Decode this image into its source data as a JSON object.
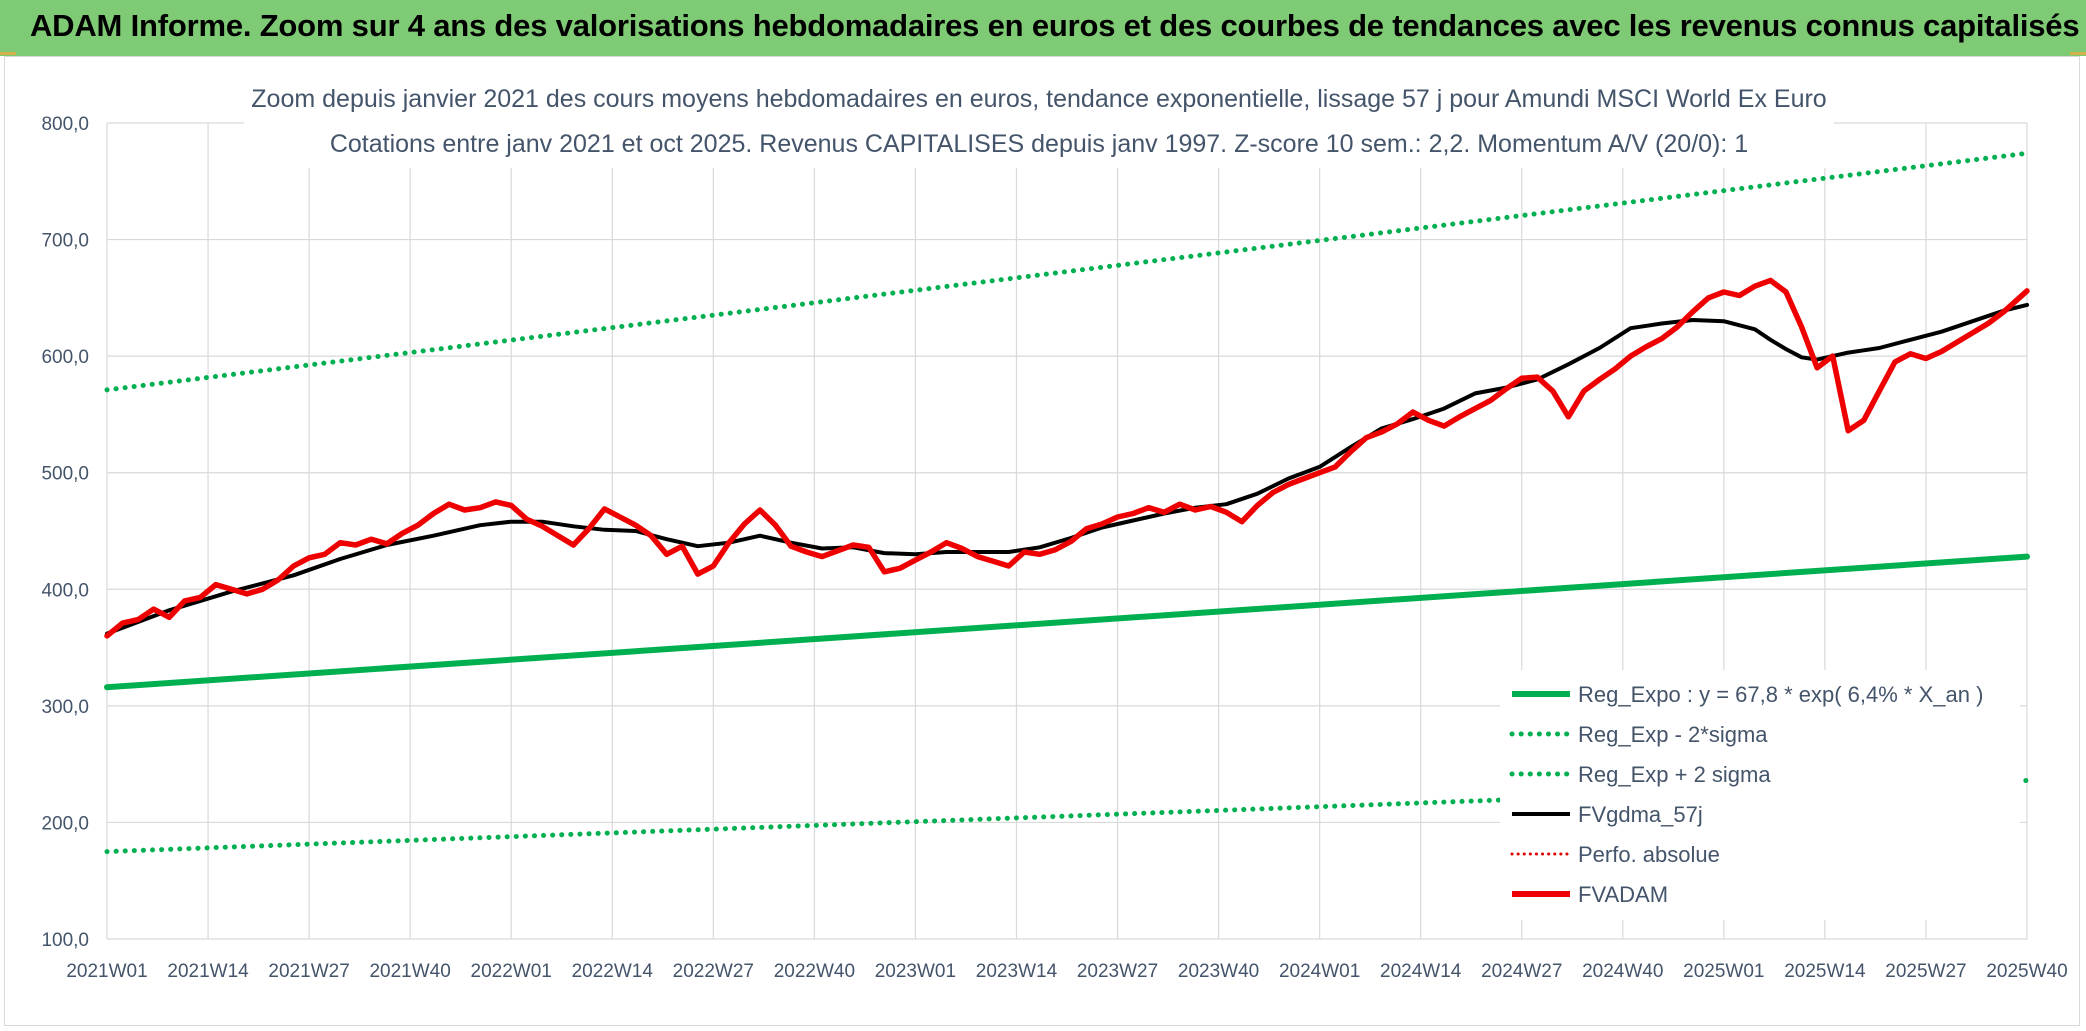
{
  "banner": {
    "title": "ADAM Informe. Zoom sur 4 ans des valorisations hebdomadaires en euros et des courbes de tendances avec les revenus connus capitalisés"
  },
  "colors": {
    "banner_bg": "#7fca74",
    "reg_expo": "#00b050",
    "sigma_lines": "#00b050",
    "fvgdma": "#000000",
    "perfo": "#e00000",
    "fvadam": "#ee0000",
    "grid": "#d9d9d9",
    "text": "#44546a"
  },
  "chart_data": {
    "type": "line",
    "title_line1": "Zoom depuis janvier 2021 des cours moyens hebdomadaires en euros, tendance exponentielle, lissage 57 j pour Amundi MSCI World Ex Euro",
    "title_line2": "Cotations entre janv 2021 et oct 2025. Revenus CAPITALISES depuis janv 1997. Z-score 10 sem.: 2,2. Momentum A/V (20/0): 1",
    "ylim": [
      100,
      800
    ],
    "yticks": [
      100,
      200,
      300,
      400,
      500,
      600,
      700,
      800
    ],
    "ytick_labels": [
      "100,0",
      "200,0",
      "300,0",
      "400,0",
      "500,0",
      "600,0",
      "700,0",
      "800,0"
    ],
    "x_domain": [
      0,
      247
    ],
    "xtick_positions": [
      0,
      13,
      26,
      39,
      52,
      65,
      78,
      91,
      104,
      117,
      130,
      143,
      156,
      169,
      182,
      195,
      208,
      221,
      234,
      247
    ],
    "xtick_labels": [
      "2021W01",
      "2021W14",
      "2021W27",
      "2021W40",
      "2022W01",
      "2022W14",
      "2022W27",
      "2022W40",
      "2023W01",
      "2023W14",
      "2023W27",
      "2023W40",
      "2024W01",
      "2024W14",
      "2024W27",
      "2024W40",
      "2025W01",
      "2025W14",
      "2025W27",
      "2025W40"
    ],
    "grid": true,
    "legend_position": "bottom-right",
    "series": [
      {
        "name": "Reg_Expo : y = 67,8 * exp( 6,4% *  X_an )",
        "style": "solid-thick",
        "x": [
          0,
          247
        ],
        "values": [
          316,
          428
        ]
      },
      {
        "name": "Reg_Exp - 2*sigma",
        "style": "dotted",
        "x": [
          0,
          247
        ],
        "values": [
          175,
          236
        ]
      },
      {
        "name": "Reg_Exp + 2 sigma",
        "style": "dotted",
        "x": [
          0,
          247
        ],
        "values": [
          571,
          774
        ]
      },
      {
        "name": "FVgdma_57j",
        "style": "solid",
        "x": [
          0,
          8,
          16,
          24,
          30,
          36,
          42,
          48,
          52,
          56,
          60,
          64,
          68,
          72,
          76,
          80,
          84,
          88,
          92,
          96,
          100,
          104,
          108,
          112,
          116,
          120,
          124,
          128,
          132,
          136,
          140,
          144,
          148,
          152,
          156,
          160,
          164,
          168,
          172,
          176,
          180,
          184,
          188,
          192,
          196,
          200,
          204,
          208,
          212,
          214,
          216,
          218,
          220,
          222,
          224,
          226,
          228,
          232,
          236,
          240,
          244,
          247
        ],
        "values": [
          362,
          382,
          398,
          412,
          426,
          438,
          446,
          455,
          458,
          458,
          454,
          451,
          450,
          443,
          437,
          440,
          446,
          440,
          435,
          436,
          431,
          430,
          432,
          432,
          432,
          436,
          444,
          453,
          459,
          465,
          470,
          473,
          482,
          495,
          505,
          522,
          538,
          546,
          555,
          568,
          573,
          580,
          593,
          607,
          624,
          628,
          631,
          630,
          623,
          614,
          606,
          599,
          597,
          600,
          603,
          605,
          607,
          614,
          621,
          630,
          639,
          644
        ]
      },
      {
        "name": "Perfo. absolue",
        "style": "dotted",
        "x": [],
        "values": []
      },
      {
        "name": "FVADAM",
        "style": "solid-thick",
        "x": [
          0,
          2,
          4,
          6,
          8,
          10,
          12,
          14,
          16,
          18,
          20,
          22,
          24,
          26,
          28,
          30,
          32,
          34,
          36,
          38,
          40,
          42,
          44,
          46,
          48,
          50,
          52,
          54,
          56,
          58,
          60,
          62,
          64,
          66,
          68,
          70,
          72,
          74,
          76,
          78,
          80,
          82,
          84,
          86,
          88,
          90,
          92,
          94,
          96,
          98,
          100,
          102,
          104,
          106,
          108,
          110,
          112,
          114,
          116,
          118,
          120,
          122,
          124,
          126,
          128,
          130,
          132,
          134,
          136,
          138,
          140,
          142,
          144,
          146,
          148,
          150,
          152,
          154,
          156,
          158,
          160,
          162,
          164,
          166,
          168,
          170,
          172,
          174,
          176,
          178,
          180,
          182,
          184,
          186,
          188,
          190,
          192,
          194,
          196,
          198,
          200,
          202,
          204,
          206,
          208,
          210,
          212,
          214,
          216,
          218,
          220,
          222,
          224,
          226,
          228,
          230,
          232,
          234,
          236,
          238,
          240,
          242,
          244,
          246,
          247
        ],
        "values": [
          360,
          371,
          374,
          383,
          376,
          390,
          393,
          404,
          400,
          396,
          400,
          408,
          420,
          427,
          430,
          440,
          438,
          443,
          439,
          448,
          455,
          465,
          473,
          468,
          470,
          475,
          472,
          460,
          454,
          446,
          438,
          452,
          469,
          462,
          455,
          446,
          430,
          437,
          413,
          420,
          440,
          456,
          468,
          455,
          437,
          432,
          428,
          433,
          438,
          436,
          415,
          418,
          425,
          432,
          440,
          435,
          428,
          424,
          420,
          432,
          430,
          434,
          441,
          452,
          456,
          462,
          465,
          470,
          466,
          473,
          468,
          471,
          466,
          458,
          472,
          483,
          490,
          495,
          500,
          505,
          518,
          530,
          535,
          542,
          552,
          545,
          540,
          548,
          555,
          562,
          572,
          581,
          582,
          570,
          548,
          570,
          580,
          589,
          600,
          608,
          615,
          625,
          638,
          650,
          655,
          652,
          660,
          665,
          655,
          625,
          590,
          600,
          536,
          545,
          570,
          595,
          602,
          598,
          604,
          612,
          620,
          628,
          638,
          650,
          656
        ]
      }
    ]
  }
}
